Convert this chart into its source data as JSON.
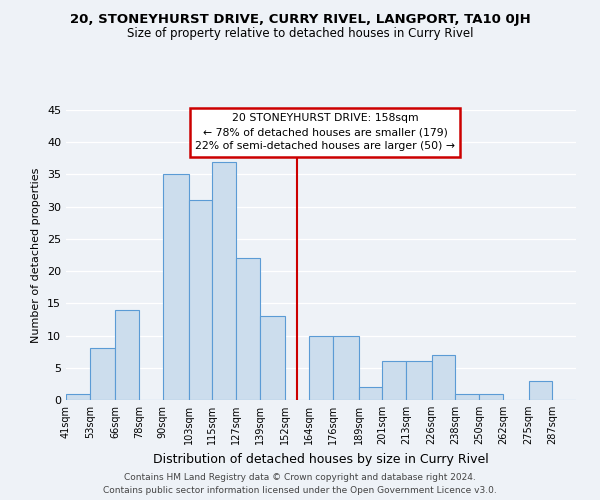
{
  "title": "20, STONEYHURST DRIVE, CURRY RIVEL, LANGPORT, TA10 0JH",
  "subtitle": "Size of property relative to detached houses in Curry Rivel",
  "xlabel": "Distribution of detached houses by size in Curry Rivel",
  "ylabel": "Number of detached properties",
  "footer_line1": "Contains HM Land Registry data © Crown copyright and database right 2024.",
  "footer_line2": "Contains public sector information licensed under the Open Government Licence v3.0.",
  "bins": [
    41,
    53,
    66,
    78,
    90,
    103,
    115,
    127,
    139,
    152,
    164,
    176,
    189,
    201,
    213,
    226,
    238,
    250,
    262,
    275,
    287,
    299
  ],
  "counts": [
    1,
    8,
    14,
    0,
    35,
    31,
    37,
    22,
    13,
    0,
    10,
    10,
    2,
    6,
    6,
    7,
    1,
    1,
    0,
    3,
    0
  ],
  "bar_color": "#ccdded",
  "bar_edge_color": "#5b9bd5",
  "highlight_x": 158,
  "highlight_color": "#cc0000",
  "annotation_title": "20 STONEYHURST DRIVE: 158sqm",
  "annotation_line1": "← 78% of detached houses are smaller (179)",
  "annotation_line2": "22% of semi-detached houses are larger (50) →",
  "annotation_box_color": "#ffffff",
  "annotation_box_edge_color": "#cc0000",
  "xlim_left": 41,
  "xlim_right": 299,
  "ylim_top": 45,
  "tick_labels": [
    "41sqm",
    "53sqm",
    "66sqm",
    "78sqm",
    "90sqm",
    "103sqm",
    "115sqm",
    "127sqm",
    "139sqm",
    "152sqm",
    "164sqm",
    "176sqm",
    "189sqm",
    "201sqm",
    "213sqm",
    "226sqm",
    "238sqm",
    "250sqm",
    "262sqm",
    "275sqm",
    "287sqm"
  ],
  "tick_positions": [
    41,
    53,
    66,
    78,
    90,
    103,
    115,
    127,
    139,
    152,
    164,
    176,
    189,
    201,
    213,
    226,
    238,
    250,
    262,
    275,
    287
  ],
  "yticks": [
    0,
    5,
    10,
    15,
    20,
    25,
    30,
    35,
    40,
    45
  ],
  "background_color": "#eef2f7"
}
